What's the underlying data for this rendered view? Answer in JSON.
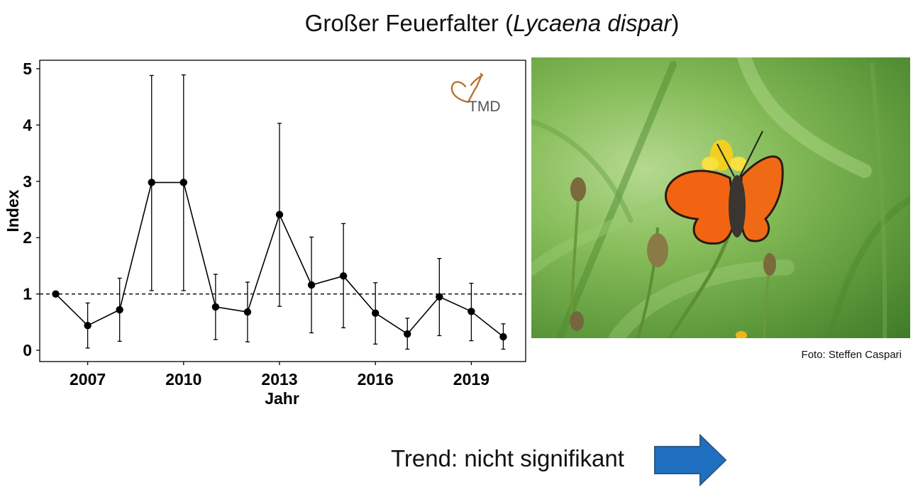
{
  "title": {
    "common_name": "Großer Feuerfalter (",
    "scientific_name": "Lycaena dispar",
    "close": ")"
  },
  "logo_text": "TMD",
  "photo_credit": "Foto: Steffen Caspari",
  "trend": {
    "label": "Trend: nicht signifikant",
    "arrow_icon": "right-arrow-icon",
    "arrow_color": "#1f6fc0"
  },
  "colors": {
    "logo_accent": "#b87333",
    "data": "#000000",
    "reference_line": "#000000"
  },
  "chart_data": {
    "type": "line",
    "xlabel": "Jahr",
    "ylabel": "Index",
    "xlim": [
      2005.5,
      2020.7
    ],
    "ylim": [
      -0.2,
      5.15
    ],
    "xticks": [
      2007,
      2010,
      2013,
      2016,
      2019
    ],
    "yticks": [
      0,
      1,
      2,
      3,
      4,
      5
    ],
    "grid": false,
    "reference_line": {
      "y": 1,
      "style": "dashed"
    },
    "x": [
      2006,
      2007,
      2008,
      2009,
      2010,
      2011,
      2012,
      2013,
      2014,
      2015,
      2016,
      2017,
      2018,
      2019,
      2020
    ],
    "y": [
      1.0,
      0.44,
      0.72,
      2.98,
      2.98,
      0.77,
      0.68,
      2.41,
      1.16,
      1.32,
      0.66,
      0.29,
      0.95,
      0.69,
      0.24
    ],
    "lower": [
      1.0,
      0.04,
      0.16,
      1.06,
      1.06,
      0.19,
      0.15,
      0.78,
      0.31,
      0.4,
      0.11,
      0.02,
      0.26,
      0.17,
      0.02
    ],
    "upper": [
      1.0,
      0.84,
      1.28,
      4.88,
      4.89,
      1.35,
      1.21,
      4.03,
      2.01,
      2.25,
      1.2,
      0.57,
      1.63,
      1.19,
      0.47
    ]
  }
}
